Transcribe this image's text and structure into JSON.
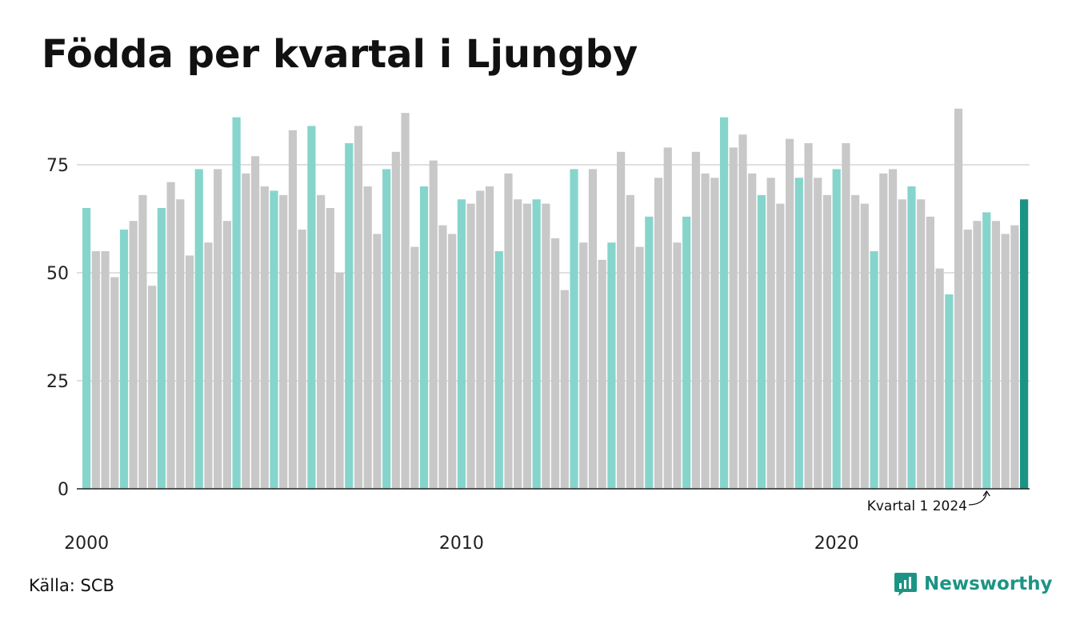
{
  "colors": {
    "q1": "#86d5cc",
    "other": "#c8c8c8",
    "highlight": "#1c9485",
    "grid": "#e0e0e0",
    "axis": "#222222",
    "brand": "#1c9485"
  },
  "chart_data": {
    "type": "bar",
    "title": "Födda per kvartal i Ljungby",
    "start_year": 2000,
    "x_tick_labels": [
      "2000",
      "2010",
      "2020"
    ],
    "y_ticks": [
      0,
      25,
      50,
      75
    ],
    "ylim": [
      0,
      90
    ],
    "grid": true,
    "values": [
      65,
      55,
      55,
      49,
      60,
      62,
      68,
      47,
      65,
      71,
      67,
      54,
      74,
      57,
      74,
      62,
      86,
      73,
      77,
      70,
      69,
      68,
      83,
      60,
      84,
      68,
      65,
      50,
      80,
      84,
      70,
      59,
      74,
      78,
      87,
      56,
      70,
      76,
      61,
      59,
      67,
      66,
      69,
      70,
      55,
      73,
      67,
      66,
      67,
      66,
      58,
      46,
      74,
      57,
      74,
      53,
      57,
      78,
      68,
      56,
      63,
      72,
      79,
      57,
      63,
      78,
      73,
      72,
      86,
      79,
      82,
      73,
      68,
      72,
      66,
      81,
      72,
      80,
      72,
      68,
      74,
      80,
      68,
      66,
      55,
      73,
      74,
      67,
      70,
      67,
      63,
      51,
      45,
      88,
      60,
      62,
      64,
      62,
      59,
      61,
      67
    ],
    "annotation": {
      "text": "Kvartal 1 2024"
    }
  },
  "footer": {
    "source": "Källa: SCB",
    "brand": "Newsworthy",
    "brand_icon": "newsworthy-logo-icon"
  }
}
